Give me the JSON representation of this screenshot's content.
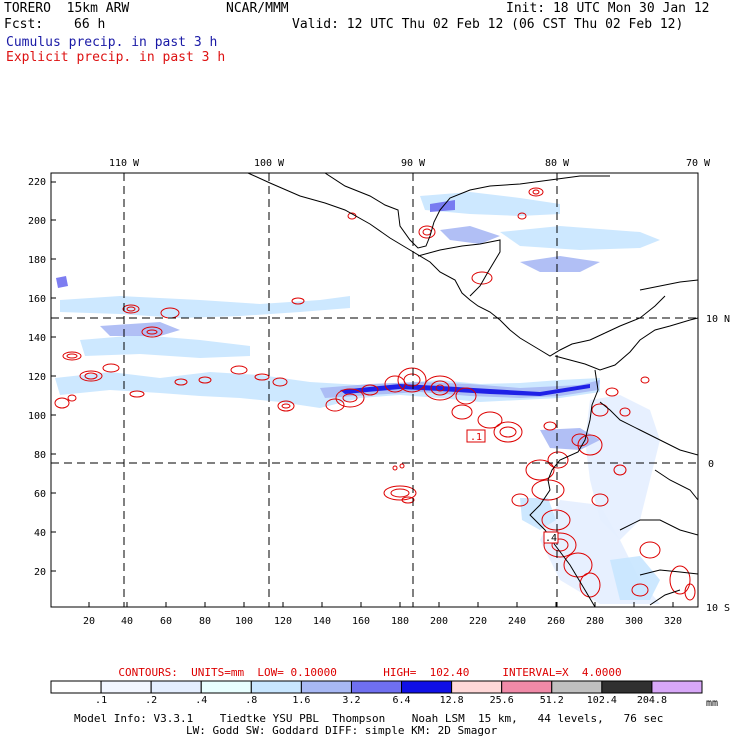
{
  "header": {
    "model": "TORERO  15km ARW",
    "org": "NCAR/MMM",
    "init": "Init: 18 UTC Mon 30 Jan 12",
    "fcst_label": "Fcst:",
    "fcst_value": "66 h",
    "valid": "Valid: 12 UTC Thu 02 Feb 12 (06 CST Thu 02 Feb 12)"
  },
  "fields": {
    "cumulus": "Cumulus precip. in past 3 h",
    "explicit": "Explicit precip. in past 3 h"
  },
  "map": {
    "lon_labels": [
      "110 W",
      "100 W",
      "90 W",
      "80 W",
      "70 W"
    ],
    "lat_labels": [
      "10 N",
      "0",
      "10 S"
    ],
    "y_ticks": [
      "220",
      "200",
      "180",
      "160",
      "140",
      "120",
      "100",
      "80",
      "60",
      "40",
      "20"
    ],
    "x_ticks": [
      "20",
      "40",
      "60",
      "80",
      "100",
      "120",
      "140",
      "160",
      "180",
      "200",
      "220",
      "240",
      "260",
      "280",
      "300",
      "320"
    ],
    "point_labels": [
      ".1",
      ".4"
    ]
  },
  "contours": {
    "text": "CONTOURS:  UNITS=mm  LOW= 0.10000       HIGH=  102.40     INTERVAL=X  4.0000"
  },
  "colorbar": {
    "labels": [
      ".1",
      ".2",
      ".4",
      ".8",
      "1.6",
      "3.2",
      "6.4",
      "12.8",
      "25.6",
      "51.2",
      "102.4",
      "204.8"
    ],
    "unit": "mm",
    "colors": [
      "#ffffff",
      "#f2f6ff",
      "#e4eeff",
      "#e8ffff",
      "#c8e6ff",
      "#a8b8f4",
      "#6f6ff0",
      "#1010e6",
      "#ffd8d8",
      "#f08aa8",
      "#c0c0c0",
      "#303030",
      "#d8a8f8"
    ]
  },
  "footer": {
    "line1": "Model Info: V3.3.1    Tiedtke YSU PBL  Thompson    Noah LSM  15 km,   44 levels,   76 sec",
    "line2": "LW: Godd SW: Goddard DIFF: simple KM: 2D Smagor"
  }
}
